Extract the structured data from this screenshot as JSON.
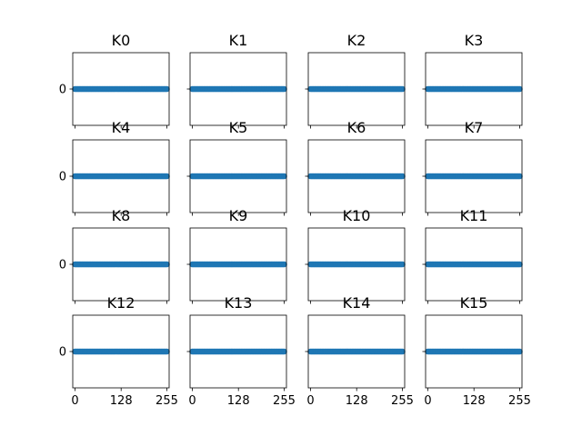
{
  "chart_data": {
    "type": "scatter",
    "grid": false,
    "layout": {
      "rows": 4,
      "cols": 4,
      "sharex": true,
      "sharey": true
    },
    "xlim": [
      -6.4,
      261.4
    ],
    "ylim": [
      -0.055,
      0.055
    ],
    "xticks": [
      0,
      128,
      255
    ],
    "yticks": [
      0
    ],
    "marker_color": "#1f77b4",
    "panels": [
      {
        "title": "K0",
        "x": [
          0,
          255
        ],
        "y": [
          0,
          0
        ]
      },
      {
        "title": "K1",
        "x": [
          0,
          255
        ],
        "y": [
          0,
          0
        ]
      },
      {
        "title": "K2",
        "x": [
          0,
          255
        ],
        "y": [
          0,
          0
        ]
      },
      {
        "title": "K3",
        "x": [
          0,
          255
        ],
        "y": [
          0,
          0
        ]
      },
      {
        "title": "K4",
        "x": [
          0,
          255
        ],
        "y": [
          0,
          0
        ]
      },
      {
        "title": "K5",
        "x": [
          0,
          255
        ],
        "y": [
          0,
          0
        ]
      },
      {
        "title": "K6",
        "x": [
          0,
          255
        ],
        "y": [
          0,
          0
        ]
      },
      {
        "title": "K7",
        "x": [
          0,
          255
        ],
        "y": [
          0,
          0
        ]
      },
      {
        "title": "K8",
        "x": [
          0,
          255
        ],
        "y": [
          0,
          0
        ]
      },
      {
        "title": "K9",
        "x": [
          0,
          255
        ],
        "y": [
          0,
          0
        ]
      },
      {
        "title": "K10",
        "x": [
          0,
          255
        ],
        "y": [
          0,
          0
        ]
      },
      {
        "title": "K11",
        "x": [
          0,
          255
        ],
        "y": [
          0,
          0
        ]
      },
      {
        "title": "K12",
        "x": [
          0,
          255
        ],
        "y": [
          0,
          0
        ]
      },
      {
        "title": "K13",
        "x": [
          0,
          255
        ],
        "y": [
          0,
          0
        ]
      },
      {
        "title": "K14",
        "x": [
          0,
          255
        ],
        "y": [
          0,
          0
        ]
      },
      {
        "title": "K15",
        "x": [
          0,
          255
        ],
        "y": [
          0,
          0
        ]
      }
    ]
  }
}
